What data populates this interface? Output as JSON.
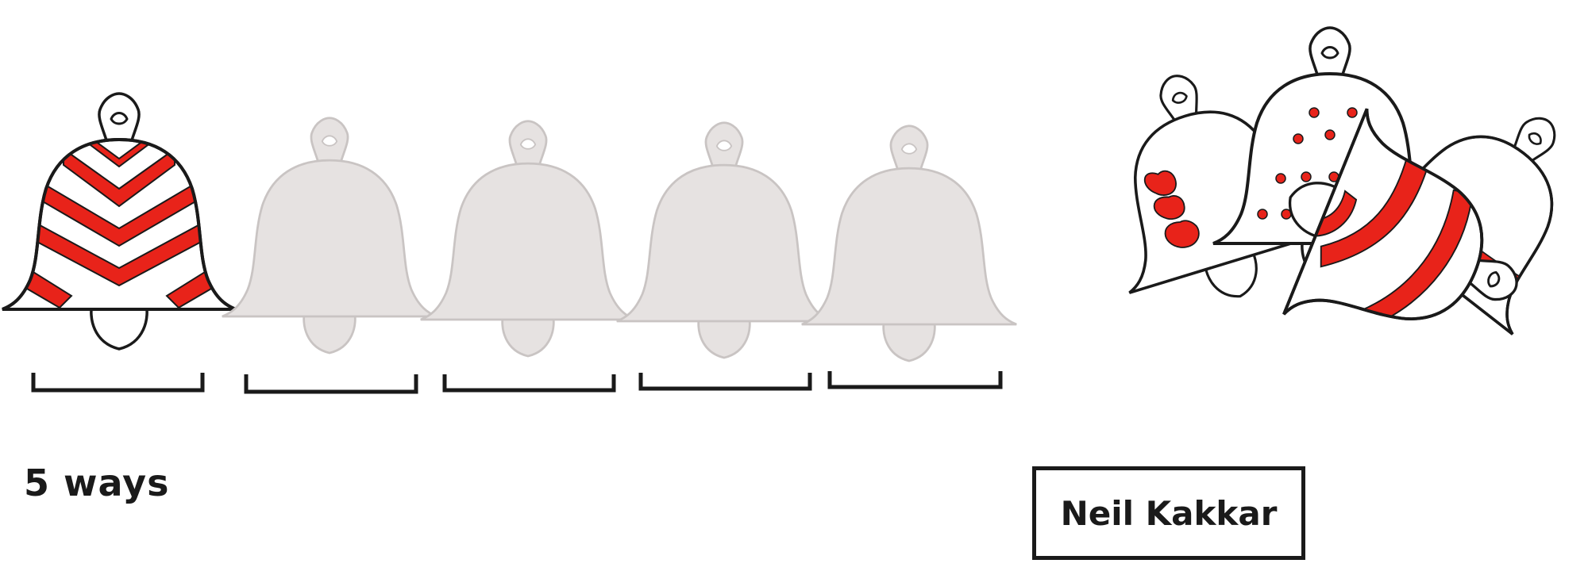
{
  "caption": "5 ways",
  "author": "Neil Kakkar",
  "colors": {
    "ink": "#1a1a1a",
    "red": "#e8231a",
    "ghost_fill": "#e6e2e1",
    "ghost_stroke": "#c9c4c3"
  },
  "bells": [
    {
      "name": "bell-1",
      "state": "decorated",
      "pattern": "chevron-stripes"
    },
    {
      "name": "bell-2",
      "state": "placeholder"
    },
    {
      "name": "bell-3",
      "state": "placeholder"
    },
    {
      "name": "bell-4",
      "state": "placeholder"
    },
    {
      "name": "bell-5",
      "state": "placeholder"
    }
  ],
  "cluster": [
    {
      "name": "bell-hearts",
      "pattern": "hearts"
    },
    {
      "name": "bell-dots",
      "pattern": "dots"
    },
    {
      "name": "bell-band",
      "pattern": "band"
    },
    {
      "name": "bell-swirl",
      "pattern": "swirl-stripes"
    }
  ]
}
